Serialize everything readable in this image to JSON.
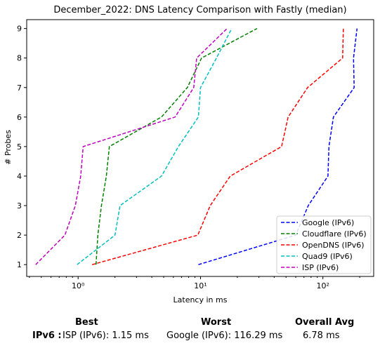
{
  "chart_data": {
    "type": "line",
    "title": "December_2022: DNS Latency Comparison with Fastly (median)",
    "xlabel": "Latency in ms",
    "ylabel": "# Probes",
    "xscale": "log",
    "xlim": [
      0.38,
      260
    ],
    "ylim": [
      0.6,
      9.3
    ],
    "y_ticks": [
      "1",
      "2",
      "3",
      "4",
      "5",
      "6",
      "7",
      "8",
      "9"
    ],
    "x_ticks": [
      {
        "value": 1,
        "label": "10⁰"
      },
      {
        "value": 10,
        "label": "10¹"
      },
      {
        "value": 100,
        "label": "10²"
      }
    ],
    "grid": false,
    "legend_position": "lower-right",
    "series": [
      {
        "name": "Google (IPv6)",
        "color": "#0000ff",
        "y": [
          1,
          2,
          3,
          4,
          5,
          6,
          7,
          8,
          9
        ],
        "x": [
          9.6,
          60,
          76,
          110,
          112,
          122,
          180,
          178,
          190
        ]
      },
      {
        "name": "Cloudflare (IPv6)",
        "color": "#008000",
        "y": [
          1,
          2,
          3,
          4,
          5,
          6,
          7,
          8,
          9
        ],
        "x": [
          1.4,
          1.45,
          1.55,
          1.7,
          1.8,
          4.8,
          7.8,
          10.2,
          29
        ]
      },
      {
        "name": "OpenDNS (IPv6)",
        "color": "#ff0000",
        "y": [
          1,
          2,
          3,
          4,
          5,
          6,
          7,
          8,
          9
        ],
        "x": [
          1.3,
          9.5,
          12,
          17.5,
          46,
          52,
          75,
          145,
          147
        ]
      },
      {
        "name": "Quad9 (IPv6)",
        "color": "#00bfbf",
        "y": [
          1,
          2,
          3,
          4,
          5,
          6,
          7,
          8,
          9
        ],
        "x": [
          0.98,
          2.0,
          2.2,
          4.8,
          6.6,
          9.6,
          10,
          13.5,
          18
        ]
      },
      {
        "name": "ISP (IPv6)",
        "color": "#bf00bf",
        "y": [
          1,
          2,
          3,
          4,
          5,
          6,
          7,
          8,
          9
        ],
        "x": [
          0.45,
          0.78,
          0.95,
          1.05,
          1.1,
          6.2,
          8.8,
          9.3,
          16.5
        ]
      }
    ]
  },
  "summary": {
    "headers": {
      "best": "Best",
      "worst": "Worst",
      "overall": "Overall Avg"
    },
    "row_label": "IPv6 :",
    "best": "ISP (IPv6): 1.15 ms",
    "worst": "Google (IPv6): 116.29 ms",
    "overall": "6.78 ms"
  }
}
